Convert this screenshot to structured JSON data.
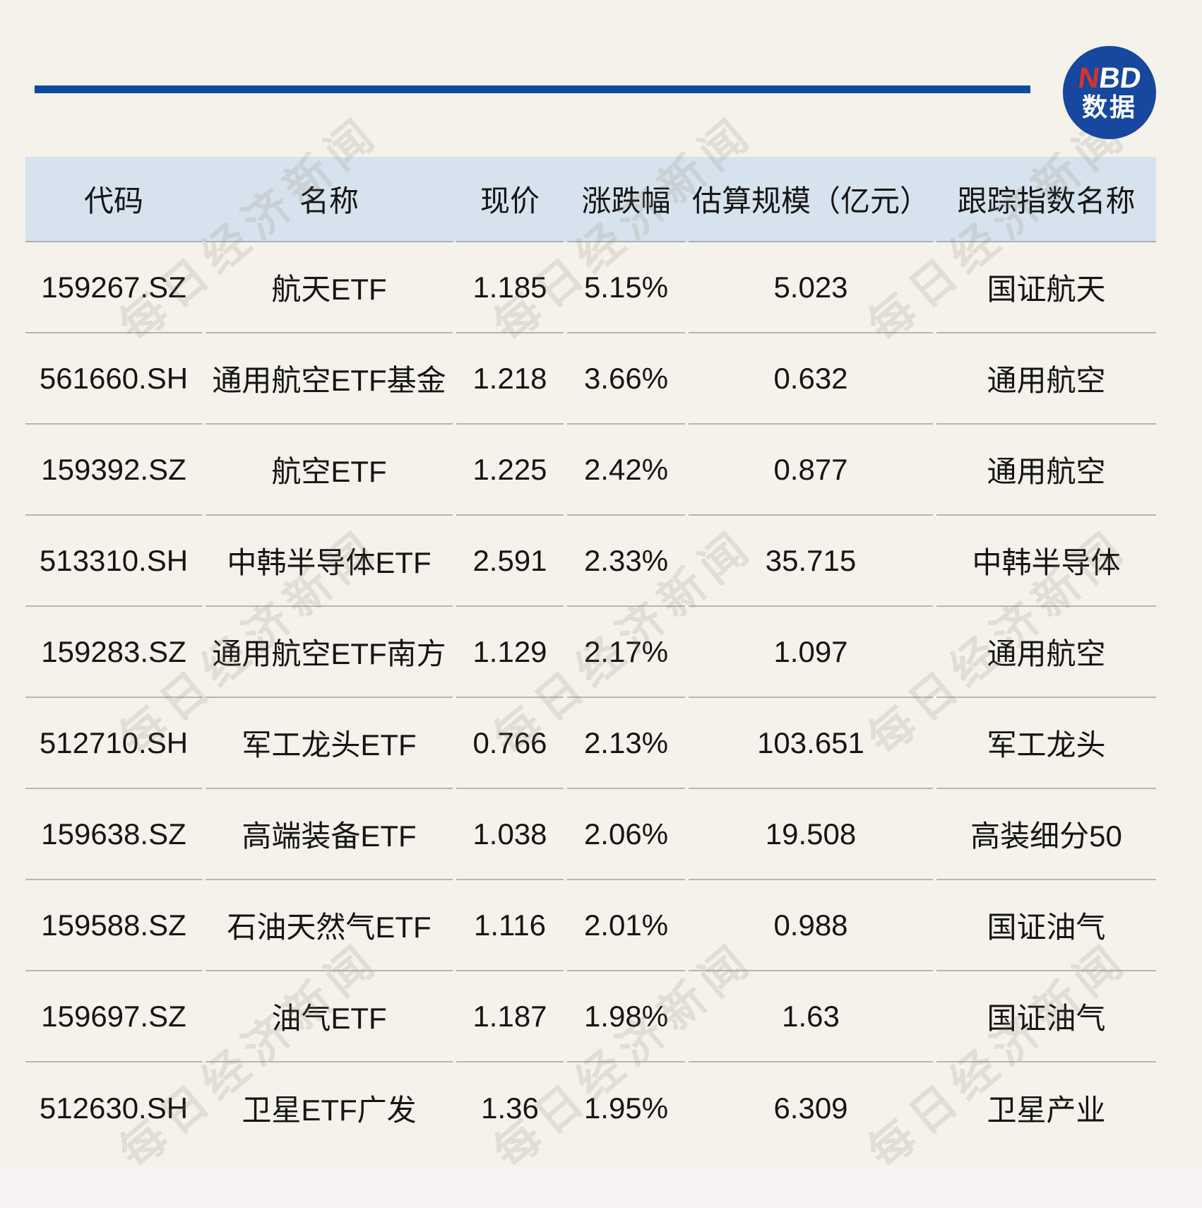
{
  "brand": {
    "n": "N",
    "bd": "BD",
    "sub": "数据"
  },
  "watermark": {
    "text": "每日经济新闻"
  },
  "chart_data": {
    "type": "table",
    "columns": [
      "代码",
      "名称",
      "现价",
      "涨跌幅",
      "估算规模（亿元）",
      "跟踪指数名称"
    ],
    "column_keys": [
      "code",
      "name",
      "price",
      "change",
      "scale",
      "index"
    ],
    "rows": [
      {
        "code": "159267.SZ",
        "name": "航天ETF",
        "price": "1.185",
        "change": "5.15%",
        "scale": "5.023",
        "index": "国证航天"
      },
      {
        "code": "561660.SH",
        "name": "通用航空ETF基金",
        "price": "1.218",
        "change": "3.66%",
        "scale": "0.632",
        "index": "通用航空"
      },
      {
        "code": "159392.SZ",
        "name": "航空ETF",
        "price": "1.225",
        "change": "2.42%",
        "scale": "0.877",
        "index": "通用航空"
      },
      {
        "code": "513310.SH",
        "name": "中韩半导体ETF",
        "price": "2.591",
        "change": "2.33%",
        "scale": "35.715",
        "index": "中韩半导体"
      },
      {
        "code": "159283.SZ",
        "name": "通用航空ETF南方",
        "price": "1.129",
        "change": "2.17%",
        "scale": "1.097",
        "index": "通用航空"
      },
      {
        "code": "512710.SH",
        "name": "军工龙头ETF",
        "price": "0.766",
        "change": "2.13%",
        "scale": "103.651",
        "index": "军工龙头"
      },
      {
        "code": "159638.SZ",
        "name": "高端装备ETF",
        "price": "1.038",
        "change": "2.06%",
        "scale": "19.508",
        "index": "高装细分50"
      },
      {
        "code": "159588.SZ",
        "name": "石油天然气ETF",
        "price": "1.116",
        "change": "2.01%",
        "scale": "0.988",
        "index": "国证油气"
      },
      {
        "code": "159697.SZ",
        "name": "油气ETF",
        "price": "1.187",
        "change": "1.98%",
        "scale": "1.63",
        "index": "国证油气"
      },
      {
        "code": "512630.SH",
        "name": "卫星ETF广发",
        "price": "1.36",
        "change": "1.95%",
        "scale": "6.309",
        "index": "卫星产业"
      }
    ],
    "colors": {
      "page_bg": "#f5f2ec",
      "header_bg": "#d6e3ee",
      "accent_blue": "#0d4b9c",
      "logo_blue": "#17479e",
      "logo_red": "#d7332a",
      "text": "#151515"
    }
  }
}
